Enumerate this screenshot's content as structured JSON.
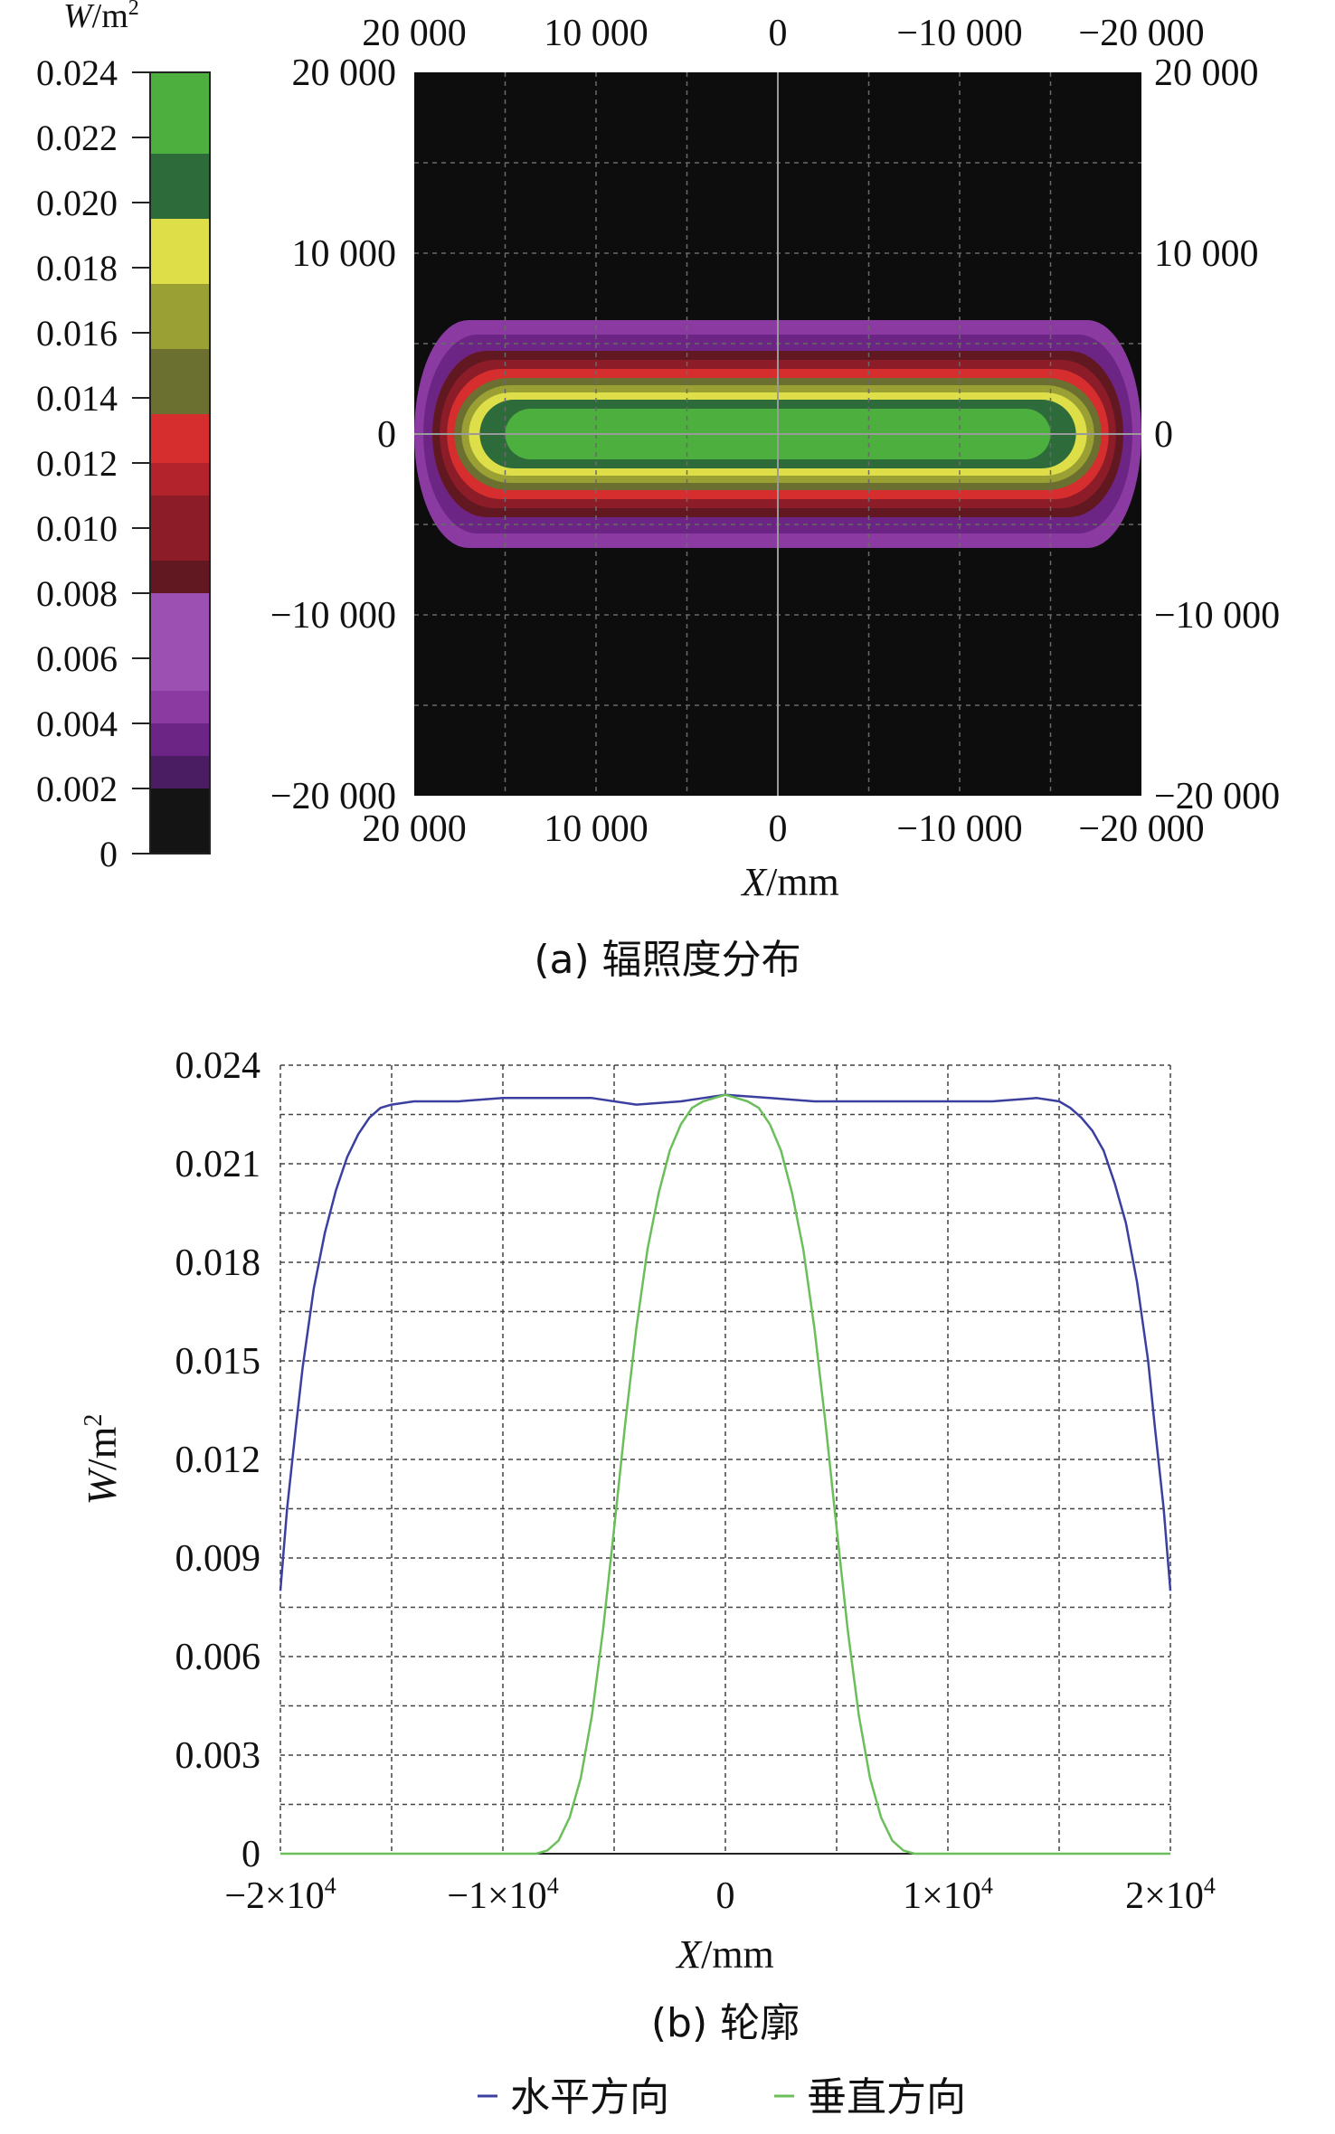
{
  "chart_data": [
    {
      "type": "heatmap",
      "caption": "(a) 辐照度分布",
      "xlabel_italic": "X",
      "xlabel_unit": "/mm",
      "x_ticks_top": [
        "20 000",
        "10 000",
        "0",
        "−10 000",
        "−20 000"
      ],
      "x_ticks_bottom": [
        "20 000",
        "10 000",
        "0",
        "−10 000",
        "−20 000"
      ],
      "y_ticks_left": [
        "20 000",
        "10 000",
        "0",
        "−10 000",
        "−20 000"
      ],
      "y_ticks_right": [
        "20 000",
        "10 000",
        "0",
        "−10 000",
        "−20 000"
      ],
      "x_range": [
        20000,
        -20000
      ],
      "y_range": [
        -20000,
        20000
      ],
      "background_color": "#0d0d0d",
      "grid": true,
      "colorbar": {
        "unit_italic": "W",
        "unit_rest": "/m",
        "unit_sup": "2",
        "tick_labels": [
          "0.024",
          "0.022",
          "0.020",
          "0.018",
          "0.016",
          "0.014",
          "0.012",
          "0.010",
          "0.008",
          "0.006",
          "0.004",
          "0.002",
          "0"
        ],
        "range": [
          0,
          0.024
        ],
        "colors_low_to_high": [
          "#141414",
          "#4a1d63",
          "#6d2585",
          "#8a3aa0",
          "#9b50b2",
          "#621820",
          "#8c1d28",
          "#b3232b",
          "#d62e2e",
          "#6b7030",
          "#9aa033",
          "#dede49",
          "#2d6b3a",
          "#4caf3e"
        ]
      },
      "contours": [
        {
          "level": 0.002,
          "x_half": 20000,
          "y_half": 6300,
          "color": "#8a3aa0"
        },
        {
          "level": 0.005,
          "x_half": 19500,
          "y_half": 5500,
          "color": "#6d2585"
        },
        {
          "level": 0.008,
          "x_half": 19000,
          "y_half": 4600,
          "color": "#621820"
        },
        {
          "level": 0.01,
          "x_half": 18600,
          "y_half": 4100,
          "color": "#8c1d28"
        },
        {
          "level": 0.012,
          "x_half": 18200,
          "y_half": 3600,
          "color": "#d62e2e"
        },
        {
          "level": 0.014,
          "x_half": 17800,
          "y_half": 3100,
          "color": "#6b7030"
        },
        {
          "level": 0.016,
          "x_half": 17400,
          "y_half": 2700,
          "color": "#9aa033"
        },
        {
          "level": 0.018,
          "x_half": 17000,
          "y_half": 2300,
          "color": "#dede49"
        },
        {
          "level": 0.02,
          "x_half": 16400,
          "y_half": 1900,
          "color": "#2d6b3a"
        },
        {
          "level": 0.022,
          "x_half": 15000,
          "y_half": 1400,
          "color": "#4caf3e"
        }
      ]
    },
    {
      "type": "line",
      "caption": "(b) 轮廓",
      "xlabel_italic": "X",
      "xlabel_unit": "/mm",
      "ylabel_italic": "W",
      "ylabel_rest": "/m",
      "ylabel_sup": "2",
      "xlim": [
        -20000,
        20000
      ],
      "ylim": [
        0,
        0.024
      ],
      "x_tick_values": [
        -20000,
        -10000,
        0,
        10000,
        20000
      ],
      "x_tick_labels": [
        "−2×10",
        "−1×10",
        "0",
        "1×10",
        "2×10"
      ],
      "x_tick_sups": [
        "4",
        "4",
        "",
        "4",
        "4"
      ],
      "y_tick_values": [
        0,
        0.003,
        0.006,
        0.009,
        0.012,
        0.015,
        0.018,
        0.021,
        0.024
      ],
      "y_tick_labels": [
        "0",
        "0.003",
        "0.006",
        "0.009",
        "0.012",
        "0.015",
        "0.018",
        "0.021",
        "0.024"
      ],
      "grid": true,
      "legend_position": "bottom",
      "series": [
        {
          "name": "水平方向",
          "color": "#3b3fa0",
          "x": [
            -20000,
            -19700,
            -19300,
            -19000,
            -18500,
            -18000,
            -17500,
            -17000,
            -16500,
            -16000,
            -15500,
            -15000,
            -14000,
            -12000,
            -10000,
            -8000,
            -6000,
            -4000,
            -2000,
            0,
            2000,
            4000,
            6000,
            8000,
            10000,
            12000,
            14000,
            15000,
            15500,
            16000,
            16500,
            17000,
            17500,
            18000,
            18500,
            19000,
            19300,
            19700,
            20000
          ],
          "values": [
            0.008,
            0.0105,
            0.013,
            0.0148,
            0.0172,
            0.0189,
            0.0202,
            0.0212,
            0.0219,
            0.0224,
            0.0227,
            0.0228,
            0.0229,
            0.0229,
            0.023,
            0.023,
            0.023,
            0.0228,
            0.0229,
            0.0231,
            0.023,
            0.0229,
            0.0229,
            0.0229,
            0.0229,
            0.0229,
            0.023,
            0.0229,
            0.0227,
            0.0224,
            0.022,
            0.0214,
            0.0204,
            0.0192,
            0.0174,
            0.015,
            0.013,
            0.0105,
            0.008
          ]
        },
        {
          "name": "垂直方向",
          "color": "#6bbf5a",
          "x": [
            -20000,
            -8500,
            -8000,
            -7500,
            -7000,
            -6500,
            -6000,
            -5500,
            -5000,
            -4500,
            -4000,
            -3500,
            -3000,
            -2500,
            -2000,
            -1500,
            -1000,
            -500,
            0,
            500,
            1000,
            1500,
            2000,
            2500,
            3000,
            3500,
            4000,
            4500,
            5000,
            5500,
            6000,
            6500,
            7000,
            7500,
            8000,
            8500,
            20000
          ],
          "values": [
            0,
            0,
            0.0001,
            0.0004,
            0.0011,
            0.0023,
            0.0042,
            0.0068,
            0.0099,
            0.0131,
            0.016,
            0.0184,
            0.0201,
            0.0214,
            0.0222,
            0.0227,
            0.0229,
            0.023,
            0.0231,
            0.023,
            0.0229,
            0.0227,
            0.0222,
            0.0214,
            0.0201,
            0.0184,
            0.016,
            0.0131,
            0.0099,
            0.0068,
            0.0042,
            0.0023,
            0.0011,
            0.0004,
            0.0001,
            0,
            0
          ]
        }
      ]
    }
  ]
}
